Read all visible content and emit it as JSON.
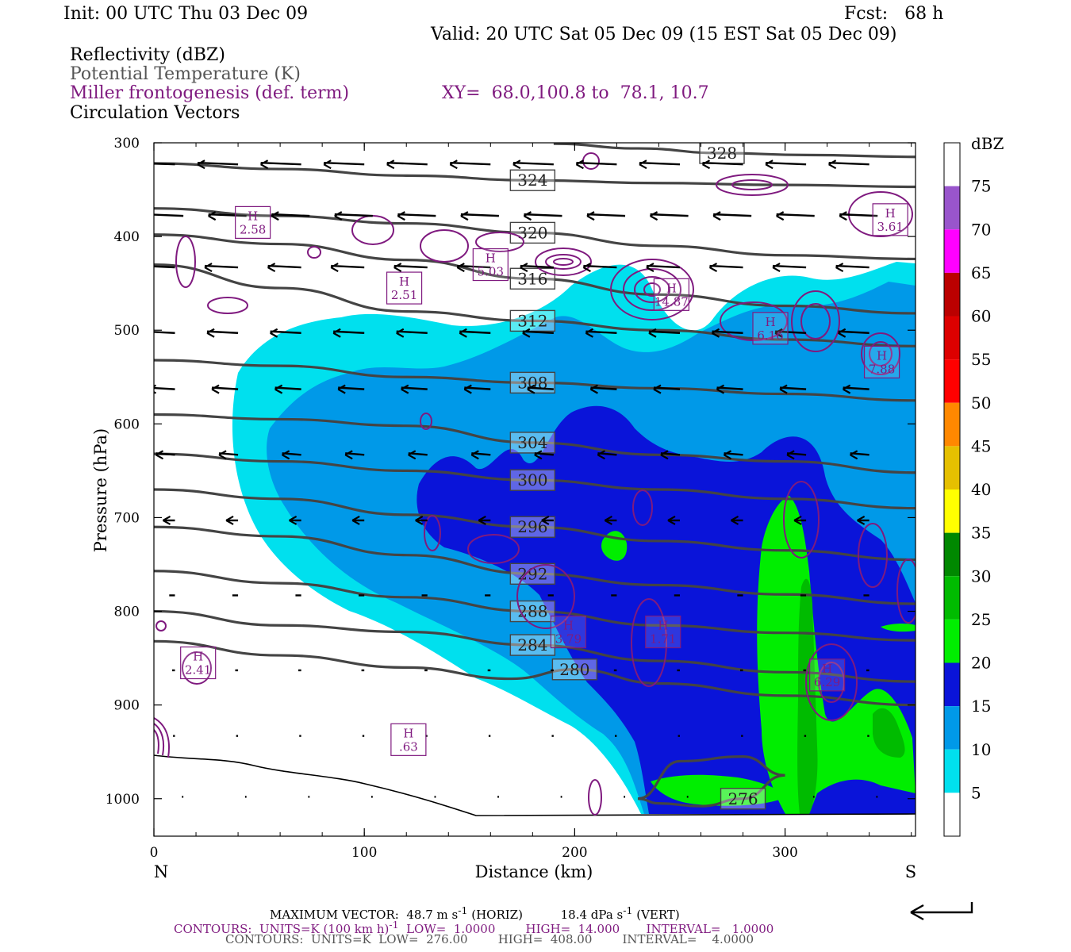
{
  "header": {
    "init": "Init: 00 UTC Thu 03 Dec 09",
    "fcst": "Fcst:   68 h",
    "valid": "Valid: 20 UTC Sat 05 Dec 09 (15 EST Sat 05 Dec 09)"
  },
  "legend_lines": {
    "reflectivity": "Reflectivity (dBZ)",
    "theta": "Potential Temperature (K)",
    "miller": "Miller frontogenesis (def. term)",
    "xy": "XY=  68.0,100.8 to  78.1, 10.7",
    "vectors": "Circulation Vectors"
  },
  "footer": {
    "max_vector_label": "MAXIMUM VECTOR:",
    "max_vector_horiz": "48.7 m s",
    "horiz_suffix": "(HORIZ)",
    "max_vector_vert": "18.4 dPa s",
    "vert_suffix": "(VERT)",
    "contours_purple": "CONTOURS:  UNITS=K (100 km h)",
    "contours_purple_rest": "  LOW=  1.0000        HIGH=  14.000       INTERVAL=   1.0000",
    "contours_gray": "CONTOURS:  UNITS=K  LOW=  276.00        HIGH=  408.00        INTERVAL=    4.0000"
  },
  "chart_data": {
    "type": "cross-section",
    "xlabel": "Distance (km)",
    "ylabel": "Pressure (hPa)",
    "xlim": [
      0,
      362
    ],
    "ylim": [
      1040,
      300
    ],
    "x_ticks": [
      "0",
      "100",
      "200",
      "300"
    ],
    "y_ticks": [
      "300",
      "400",
      "500",
      "600",
      "700",
      "800",
      "900",
      "1000"
    ],
    "end_labels": {
      "left": "N",
      "right": "S"
    },
    "colorbar": {
      "unit": "dBZ",
      "levels": [
        "5",
        "10",
        "15",
        "20",
        "25",
        "30",
        "35",
        "40",
        "45",
        "50",
        "55",
        "60",
        "65",
        "70",
        "75"
      ],
      "colors": [
        "#ffffff",
        "#00e0ee",
        "#0099e8",
        "#0a14d9",
        "#00ee00",
        "#00bb00",
        "#008800",
        "#ffff00",
        "#e6c000",
        "#ff8800",
        "#ff0000",
        "#dd0000",
        "#bb0000",
        "#ff00ff",
        "#9955cc",
        "#ffffff"
      ]
    },
    "theta_isentropes": [
      {
        "label": "324",
        "x": [
          0,
          60,
          120,
          180,
          240,
          300,
          362
        ],
        "p": [
          322,
          328,
          335,
          340,
          343,
          345,
          347
        ]
      },
      {
        "label": "328",
        "x": [
          190,
          230,
          270,
          310,
          362
        ],
        "p": [
          301,
          306,
          311,
          313,
          315
        ]
      },
      {
        "label": "320",
        "x": [
          0,
          60,
          120,
          180,
          240,
          300,
          362
        ],
        "p": [
          370,
          378,
          386,
          396,
          410,
          420,
          424
        ]
      },
      {
        "label": "316",
        "x": [
          0,
          60,
          120,
          180,
          240,
          300,
          362
        ],
        "p": [
          398,
          408,
          425,
          445,
          462,
          474,
          482
        ]
      },
      {
        "label": "312",
        "x": [
          0,
          60,
          120,
          180,
          240,
          300,
          362
        ],
        "p": [
          430,
          455,
          480,
          490,
          500,
          510,
          517
        ]
      },
      {
        "label": "308",
        "x": [
          0,
          60,
          120,
          180,
          240,
          300,
          362
        ],
        "p": [
          532,
          538,
          550,
          556,
          562,
          568,
          575
        ]
      },
      {
        "label": "304",
        "x": [
          0,
          60,
          120,
          180,
          240,
          300,
          362
        ],
        "p": [
          590,
          595,
          602,
          620,
          633,
          640,
          652
        ]
      },
      {
        "label": "300",
        "x": [
          0,
          60,
          120,
          180,
          240,
          300,
          362
        ],
        "p": [
          632,
          640,
          650,
          660,
          670,
          680,
          690
        ]
      },
      {
        "label": "296",
        "x": [
          0,
          60,
          120,
          180,
          240,
          300,
          362
        ],
        "p": [
          670,
          680,
          697,
          710,
          725,
          735,
          745
        ]
      },
      {
        "label": "292",
        "x": [
          0,
          60,
          120,
          180,
          240,
          300,
          362
        ],
        "p": [
          710,
          720,
          740,
          760,
          772,
          782,
          792
        ]
      },
      {
        "label": "288",
        "x": [
          0,
          60,
          120,
          180,
          240,
          300,
          362
        ],
        "p": [
          757,
          770,
          785,
          800,
          815,
          823,
          831
        ]
      },
      {
        "label": "284",
        "x": [
          0,
          60,
          120,
          180,
          240,
          300,
          362
        ],
        "p": [
          800,
          815,
          822,
          836,
          853,
          865,
          875
        ]
      },
      {
        "label": "280",
        "x": [
          0,
          60,
          120,
          170,
          200,
          240,
          300,
          362
        ],
        "p": [
          832,
          847,
          860,
          872,
          862,
          877,
          890,
          900
        ]
      },
      {
        "label": "276",
        "x": [
          230,
          250,
          280,
          300,
          280,
          260,
          240,
          230
        ],
        "p": [
          1000,
          960,
          955,
          975,
          1000,
          1008,
          1005,
          1000
        ]
      }
    ],
    "miller_maxima": [
      {
        "label": "2.58",
        "x": 47,
        "p": 385
      },
      {
        "label": "2.51",
        "x": 119,
        "p": 455
      },
      {
        "label": "5.03",
        "x": 160,
        "p": 430
      },
      {
        "label": "14.87",
        "x": 246,
        "p": 462
      },
      {
        "label": "6.16",
        "x": 293,
        "p": 498
      },
      {
        "label": "3.61",
        "x": 350,
        "p": 382
      },
      {
        "label": "7.88",
        "x": 346,
        "p": 534
      },
      {
        "label": "3.79",
        "x": 197,
        "p": 822
      },
      {
        "label": "1.71",
        "x": 242,
        "p": 822
      },
      {
        "label": "6.29",
        "x": 320,
        "p": 868
      },
      {
        "label": "2.41",
        "x": 21,
        "p": 855
      },
      {
        "label": ".63",
        "x": 121,
        "p": 937
      }
    ],
    "max_vector": {
      "horiz_m_s": 48.7,
      "vert_dPa_s": 18.4
    }
  }
}
